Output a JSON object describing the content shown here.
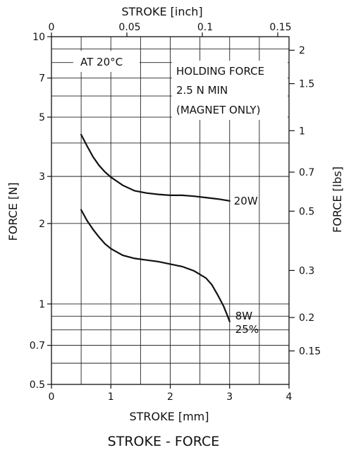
{
  "chart_data": {
    "type": "line",
    "title": "STROKE - FORCE",
    "xlabel": "STROKE [mm]",
    "ylabel": "FORCE [N]",
    "top_xlabel": "STROKE [inch]",
    "right_ylabel": "FORCE [lbs]",
    "xlim": [
      0,
      4
    ],
    "ylim": [
      0.5,
      10
    ],
    "y_scale": "log",
    "grid": true,
    "x_ticks": [
      {
        "v": 0,
        "label": "0"
      },
      {
        "v": 1,
        "label": "1"
      },
      {
        "v": 2,
        "label": "2"
      },
      {
        "v": 3,
        "label": "3"
      },
      {
        "v": 4,
        "label": "4"
      }
    ],
    "y_ticks": [
      {
        "v": 0.5,
        "label": "0.5"
      },
      {
        "v": 0.7,
        "label": "0.7"
      },
      {
        "v": 1,
        "label": "1"
      },
      {
        "v": 2,
        "label": "2"
      },
      {
        "v": 3,
        "label": "3"
      },
      {
        "v": 5,
        "label": "5"
      },
      {
        "v": 7,
        "label": "7"
      },
      {
        "v": 10,
        "label": "10"
      }
    ],
    "top_ticks": [
      {
        "v": 0,
        "label": "0"
      },
      {
        "v": 0.05,
        "label": "0.05"
      },
      {
        "v": 0.1,
        "label": "0.1"
      },
      {
        "v": 0.15,
        "label": "0.15"
      }
    ],
    "right_ticks": [
      {
        "v": 2,
        "label": "2"
      },
      {
        "v": 1.5,
        "label": "1.5"
      },
      {
        "v": 1,
        "label": "1"
      },
      {
        "v": 0.7,
        "label": "0.7"
      },
      {
        "v": 0.5,
        "label": "0.5"
      },
      {
        "v": 0.3,
        "label": "0.3"
      },
      {
        "v": 0.2,
        "label": "0.2"
      },
      {
        "v": 0.15,
        "label": "0.15"
      }
    ],
    "grid_y": [
      0.6,
      0.7,
      0.8,
      0.9,
      1,
      2,
      3,
      4,
      5,
      6,
      7,
      8,
      9
    ],
    "grid_x": [
      0.5,
      1,
      1.5,
      2,
      2.5,
      3,
      3.5
    ],
    "annotations": {
      "temperature": "AT 20°C",
      "holding_line1": "HOLDING FORCE",
      "holding_line2": "2.5 N MIN",
      "holding_line3": "(MAGNET ONLY)"
    },
    "series": [
      {
        "name": "20W",
        "x": [
          0.5,
          0.6,
          0.7,
          0.8,
          0.9,
          1.0,
          1.2,
          1.4,
          1.6,
          1.8,
          2.0,
          2.2,
          2.4,
          2.6,
          2.8,
          3.0
        ],
        "y": [
          4.3,
          3.9,
          3.55,
          3.3,
          3.12,
          2.98,
          2.78,
          2.65,
          2.6,
          2.57,
          2.55,
          2.55,
          2.53,
          2.5,
          2.47,
          2.43
        ]
      },
      {
        "name": "8W",
        "label2": "25%",
        "x": [
          0.5,
          0.6,
          0.7,
          0.8,
          0.9,
          1.0,
          1.2,
          1.4,
          1.6,
          1.8,
          2.0,
          2.2,
          2.4,
          2.6,
          2.7,
          2.8,
          2.9,
          2.95,
          3.0
        ],
        "y": [
          2.25,
          2.05,
          1.9,
          1.78,
          1.68,
          1.61,
          1.52,
          1.48,
          1.46,
          1.44,
          1.41,
          1.38,
          1.33,
          1.25,
          1.18,
          1.08,
          0.98,
          0.92,
          0.86
        ]
      }
    ]
  }
}
